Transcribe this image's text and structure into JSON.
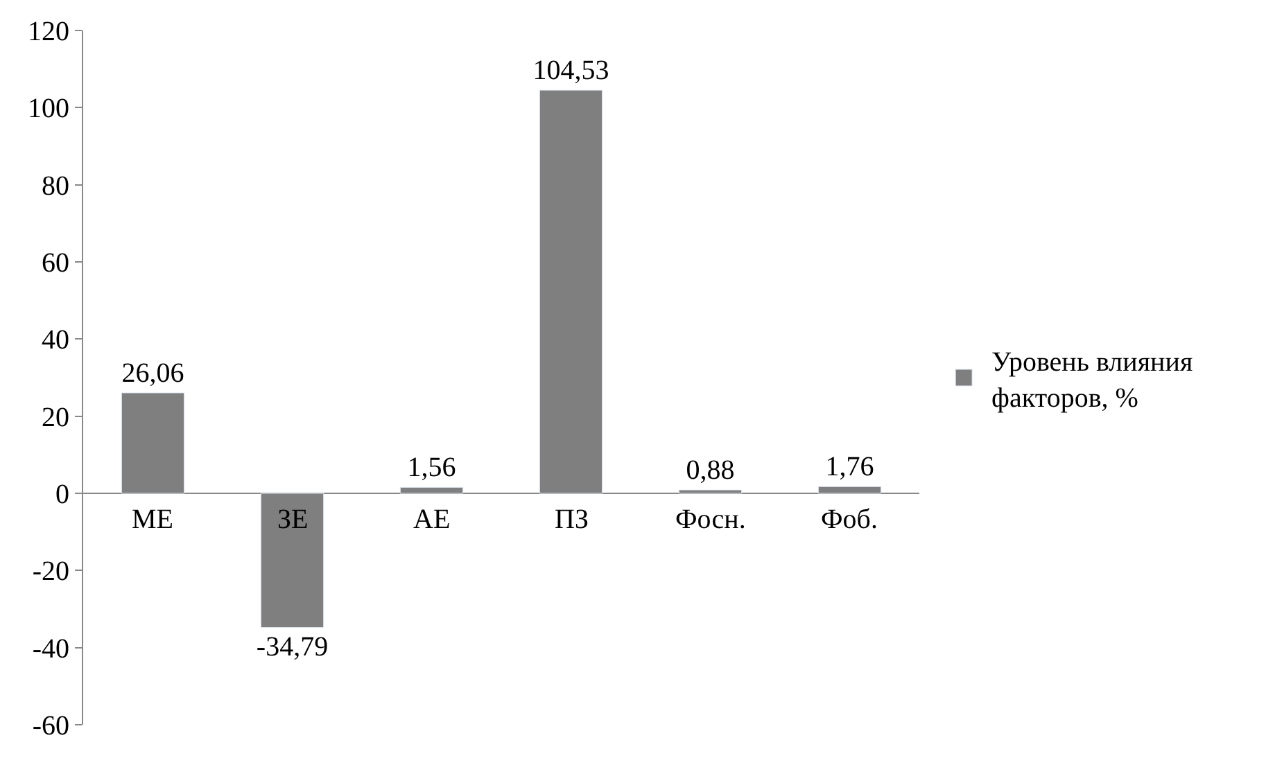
{
  "chart_data": {
    "type": "bar",
    "categories": [
      "МЕ",
      "ЗЕ",
      "АЕ",
      "ПЗ",
      "Фосн.",
      "Фоб."
    ],
    "series": [
      {
        "name": "Уровень влияния факторов, %",
        "color": "#7f7f7f",
        "values": [
          26.06,
          -34.79,
          1.56,
          104.53,
          0.88,
          1.76
        ],
        "value_labels": [
          "26,06",
          "-34,79",
          "1,56",
          "104,53",
          "0,88",
          "1,76"
        ]
      }
    ],
    "ylim": [
      -60,
      120
    ],
    "yticks": [
      -60,
      -40,
      -20,
      0,
      20,
      40,
      60,
      80,
      100,
      120
    ],
    "legend": "right"
  }
}
